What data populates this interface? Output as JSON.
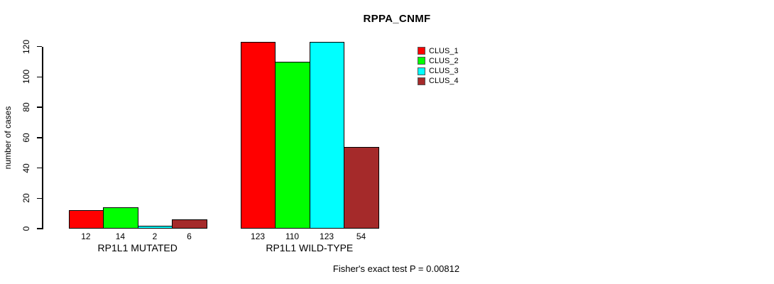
{
  "chart_data": {
    "type": "bar",
    "title": "RPPA_CNMF",
    "ylabel": "number of cases",
    "xlabel": "",
    "ylim": [
      0,
      130
    ],
    "yticks": [
      0,
      20,
      40,
      60,
      80,
      100,
      120
    ],
    "categories": [
      "RP1L1 MUTATED",
      "RP1L1 WILD-TYPE"
    ],
    "series": [
      {
        "name": "CLUS_1",
        "color": "#ff0000",
        "values": [
          12,
          123
        ]
      },
      {
        "name": "CLUS_2",
        "color": "#00ff00",
        "values": [
          14,
          110
        ]
      },
      {
        "name": "CLUS_3",
        "color": "#00ffff",
        "values": [
          2,
          123
        ]
      },
      {
        "name": "CLUS_4",
        "color": "#a52a2a",
        "values": [
          6,
          54
        ]
      }
    ],
    "annotation": "Fisher's exact test P = 0.00812",
    "legend_position": "top-right",
    "grid": false,
    "background": "#ffffff",
    "axis_color": "#000000",
    "text_color": "#000000"
  }
}
